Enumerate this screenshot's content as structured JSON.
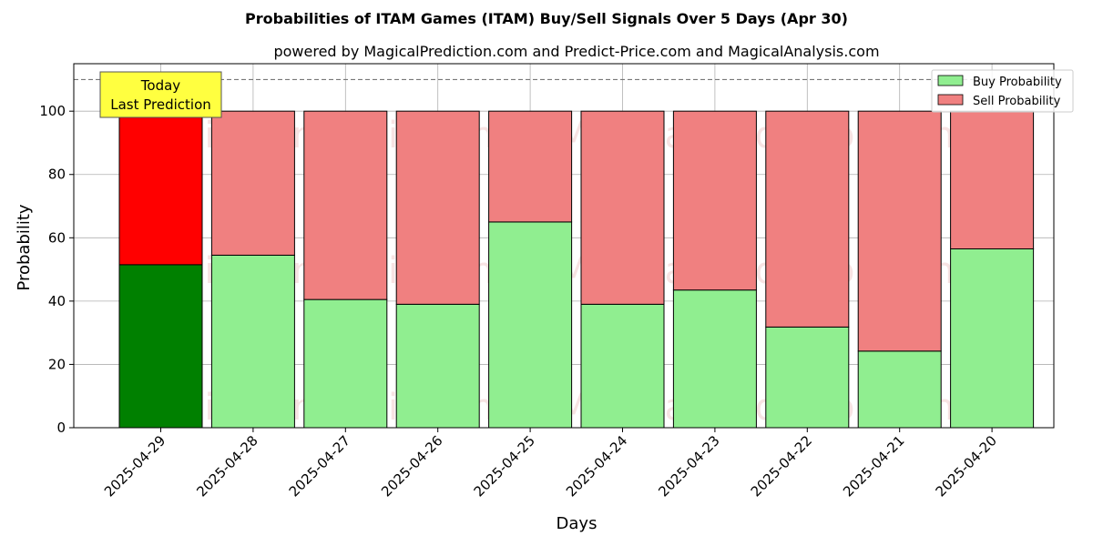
{
  "chart_data": {
    "type": "bar",
    "stacked": true,
    "title": "Probabilities of ITAM Games (ITAM) Buy/Sell Signals Over 5 Days (Apr 30)",
    "subtitle": "powered by MagicalPrediction.com and Predict-Price.com and MagicalAnalysis.com",
    "xlabel": "Days",
    "ylabel": "Probability",
    "ylim": [
      0,
      115
    ],
    "yticks": [
      0,
      20,
      40,
      60,
      80,
      100
    ],
    "categories": [
      "2025-04-29",
      "2025-04-28",
      "2025-04-27",
      "2025-04-26",
      "2025-04-25",
      "2025-04-24",
      "2025-04-23",
      "2025-04-22",
      "2025-04-21",
      "2025-04-20"
    ],
    "series": [
      {
        "name": "Buy Probability",
        "color": "#90ee90",
        "highlight_color": "#008000",
        "values": [
          51.5,
          54.5,
          40.5,
          39.0,
          65.0,
          39.0,
          43.5,
          31.8,
          24.2,
          56.5
        ]
      },
      {
        "name": "Sell Probability",
        "color": "#f08080",
        "highlight_color": "#ff0000",
        "values": [
          48.5,
          45.5,
          59.5,
          61.0,
          35.0,
          61.0,
          56.5,
          68.2,
          75.8,
          43.5
        ]
      }
    ],
    "reference_line": 110,
    "grid": true,
    "legend_position": "top-right",
    "annotation": {
      "line1": "Today",
      "line2": "Last Prediction",
      "color": "#ffff40"
    },
    "watermarks": [
      "MagicalAnalysis.com",
      "MagicalPrediction.com"
    ]
  }
}
